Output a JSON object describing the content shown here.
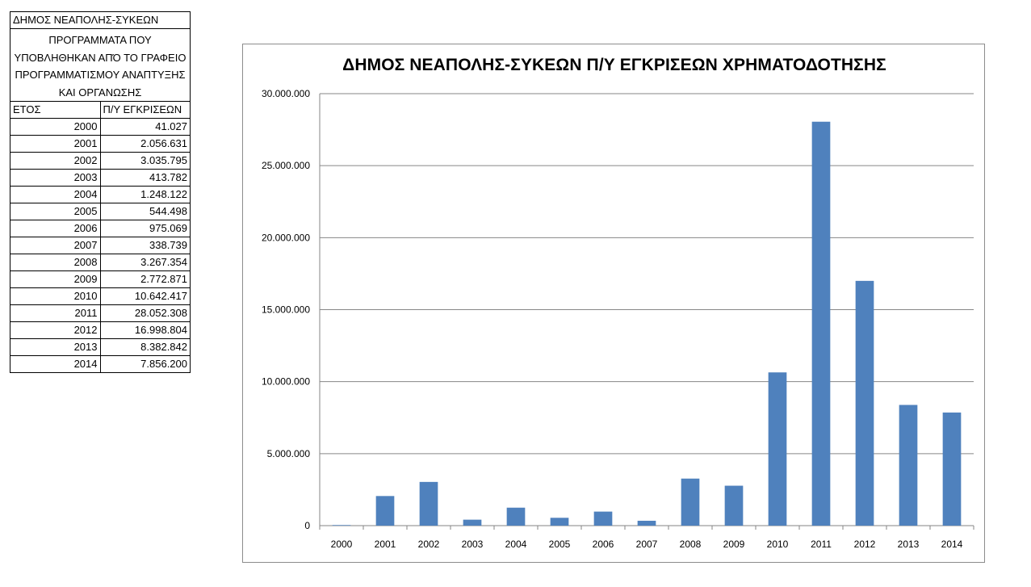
{
  "table": {
    "title": "ΔΗΜΟΣ ΝΕΑΠΟΛΗΣ-ΣΥΚΕΩΝ",
    "description": "ΠΡΟΓΡΑΜΜΑΤΑ ΠΟΥ ΥΠΟΒΛΗΘΗΚΑΝ ΑΠΌ ΤΟ ΓΡΑΦΕΙΟ ΠΡΟΓΡΑΜΜΑΤΙΣΜΟΥ ΑΝΑΠΤΥΞΗΣ ΚΑΙ ΟΡΓΑΝΩΣΗΣ",
    "col_year": "ΕΤΟΣ",
    "col_value": "Π/Υ ΕΓΚΡΙΣΕΩΝ",
    "rows": [
      {
        "year": "2000",
        "value": "41.027"
      },
      {
        "year": "2001",
        "value": "2.056.631"
      },
      {
        "year": "2002",
        "value": "3.035.795"
      },
      {
        "year": "2003",
        "value": "413.782"
      },
      {
        "year": "2004",
        "value": "1.248.122"
      },
      {
        "year": "2005",
        "value": "544.498"
      },
      {
        "year": "2006",
        "value": "975.069"
      },
      {
        "year": "2007",
        "value": "338.739"
      },
      {
        "year": "2008",
        "value": "3.267.354"
      },
      {
        "year": "2009",
        "value": "2.772.871"
      },
      {
        "year": "2010",
        "value": "10.642.417"
      },
      {
        "year": "2011",
        "value": "28.052.308"
      },
      {
        "year": "2012",
        "value": "16.998.804"
      },
      {
        "year": "2013",
        "value": "8.382.842"
      },
      {
        "year": "2014",
        "value": "7.856.200"
      }
    ]
  },
  "chart_data": {
    "type": "bar",
    "title": "ΔΗΜΟΣ ΝΕΑΠΟΛΗΣ-ΣΥΚΕΩΝ Π/Υ ΕΓΚΡΙΣΕΩΝ ΧΡΗΜΑΤΟΔΟΤΗΣΗΣ",
    "xlabel": "",
    "ylabel": "",
    "categories": [
      "2000",
      "2001",
      "2002",
      "2003",
      "2004",
      "2005",
      "2006",
      "2007",
      "2008",
      "2009",
      "2010",
      "2011",
      "2012",
      "2013",
      "2014"
    ],
    "values": [
      41027,
      2056631,
      3035795,
      413782,
      1248122,
      544498,
      975069,
      338739,
      3267354,
      2772871,
      10642417,
      28052308,
      16998804,
      8382842,
      7856200
    ],
    "ylim": [
      0,
      30000000
    ],
    "y_ticks": [
      0,
      5000000,
      10000000,
      15000000,
      20000000,
      25000000,
      30000000
    ],
    "y_tick_labels": [
      "0",
      "5.000.000",
      "10.000.000",
      "15.000.000",
      "20.000.000",
      "25.000.000",
      "30.000.000"
    ],
    "grid": true,
    "legend": "none",
    "bar_color": "#4f81bd"
  }
}
